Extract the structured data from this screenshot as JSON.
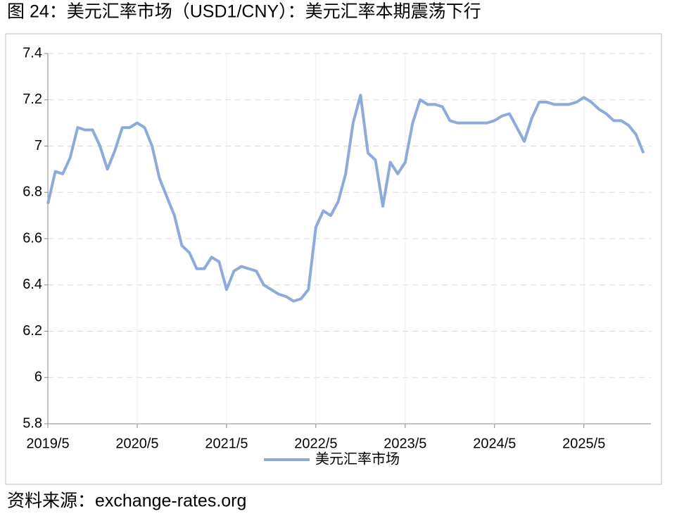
{
  "chart_data": {
    "type": "line",
    "title": "图 24：美元汇率市场（USD1/CNY）：美元汇率本期震荡下行",
    "source": "资料来源：exchange-rates.org",
    "x": [
      "2019/5",
      "2019/6",
      "2019/7",
      "2019/8",
      "2019/9",
      "2019/10",
      "2019/11",
      "2019/12",
      "2020/1",
      "2020/2",
      "2020/3",
      "2020/4",
      "2020/5",
      "2020/6",
      "2020/7",
      "2020/8",
      "2020/9",
      "2020/10",
      "2020/11",
      "2020/12",
      "2021/1",
      "2021/2",
      "2021/3",
      "2021/4",
      "2021/5",
      "2021/6",
      "2021/7",
      "2021/8",
      "2021/9",
      "2021/10",
      "2021/11",
      "2021/12",
      "2022/1",
      "2022/2",
      "2022/3",
      "2022/4",
      "2022/5",
      "2022/6",
      "2022/7",
      "2022/8",
      "2022/9",
      "2022/10",
      "2022/11",
      "2022/12",
      "2023/1",
      "2023/2",
      "2023/3",
      "2023/4",
      "2023/5",
      "2023/6",
      "2023/7",
      "2023/8",
      "2023/9",
      "2023/10",
      "2023/11",
      "2023/12",
      "2024/1",
      "2024/2",
      "2024/3",
      "2024/4",
      "2024/5",
      "2024/6",
      "2024/7",
      "2024/8",
      "2024/9",
      "2024/10",
      "2024/11",
      "2024/12",
      "2025/1",
      "2025/2",
      "2025/3",
      "2025/4",
      "2025/5",
      "2025/6",
      "2025/7",
      "2025/8",
      "2025/9",
      "2025/10",
      "2025/11",
      "2025/12",
      "2026/1"
    ],
    "series": [
      {
        "name": "美元汇率市场",
        "color": "#8eaadb",
        "values": [
          6.75,
          6.89,
          6.88,
          6.95,
          7.08,
          7.07,
          7.07,
          7.0,
          6.9,
          6.98,
          7.08,
          7.08,
          7.1,
          7.08,
          7.0,
          6.86,
          6.78,
          6.7,
          6.57,
          6.54,
          6.47,
          6.47,
          6.52,
          6.5,
          6.38,
          6.46,
          6.48,
          6.47,
          6.46,
          6.4,
          6.38,
          6.36,
          6.35,
          6.33,
          6.34,
          6.38,
          6.65,
          6.72,
          6.7,
          6.76,
          6.88,
          7.1,
          7.22,
          6.97,
          6.94,
          6.74,
          6.93,
          6.88,
          6.93,
          7.1,
          7.2,
          7.18,
          7.18,
          7.17,
          7.11,
          7.1,
          7.1,
          7.1,
          7.1,
          7.1,
          7.11,
          7.13,
          7.14,
          7.08,
          7.02,
          7.12,
          7.19,
          7.19,
          7.18,
          7.18,
          7.18,
          7.19,
          7.21,
          7.19,
          7.16,
          7.14,
          7.11,
          7.11,
          7.09,
          7.05,
          6.97
        ]
      }
    ],
    "xticks": [
      "2019/5",
      "2020/5",
      "2021/5",
      "2022/5",
      "2023/5",
      "2024/5",
      "2025/5"
    ],
    "ylim": [
      5.8,
      7.4
    ],
    "yticks": [
      5.8,
      6,
      6.2,
      6.4,
      6.6,
      6.8,
      7,
      7.2,
      7.4
    ],
    "grid": true,
    "legend": "bottom"
  }
}
